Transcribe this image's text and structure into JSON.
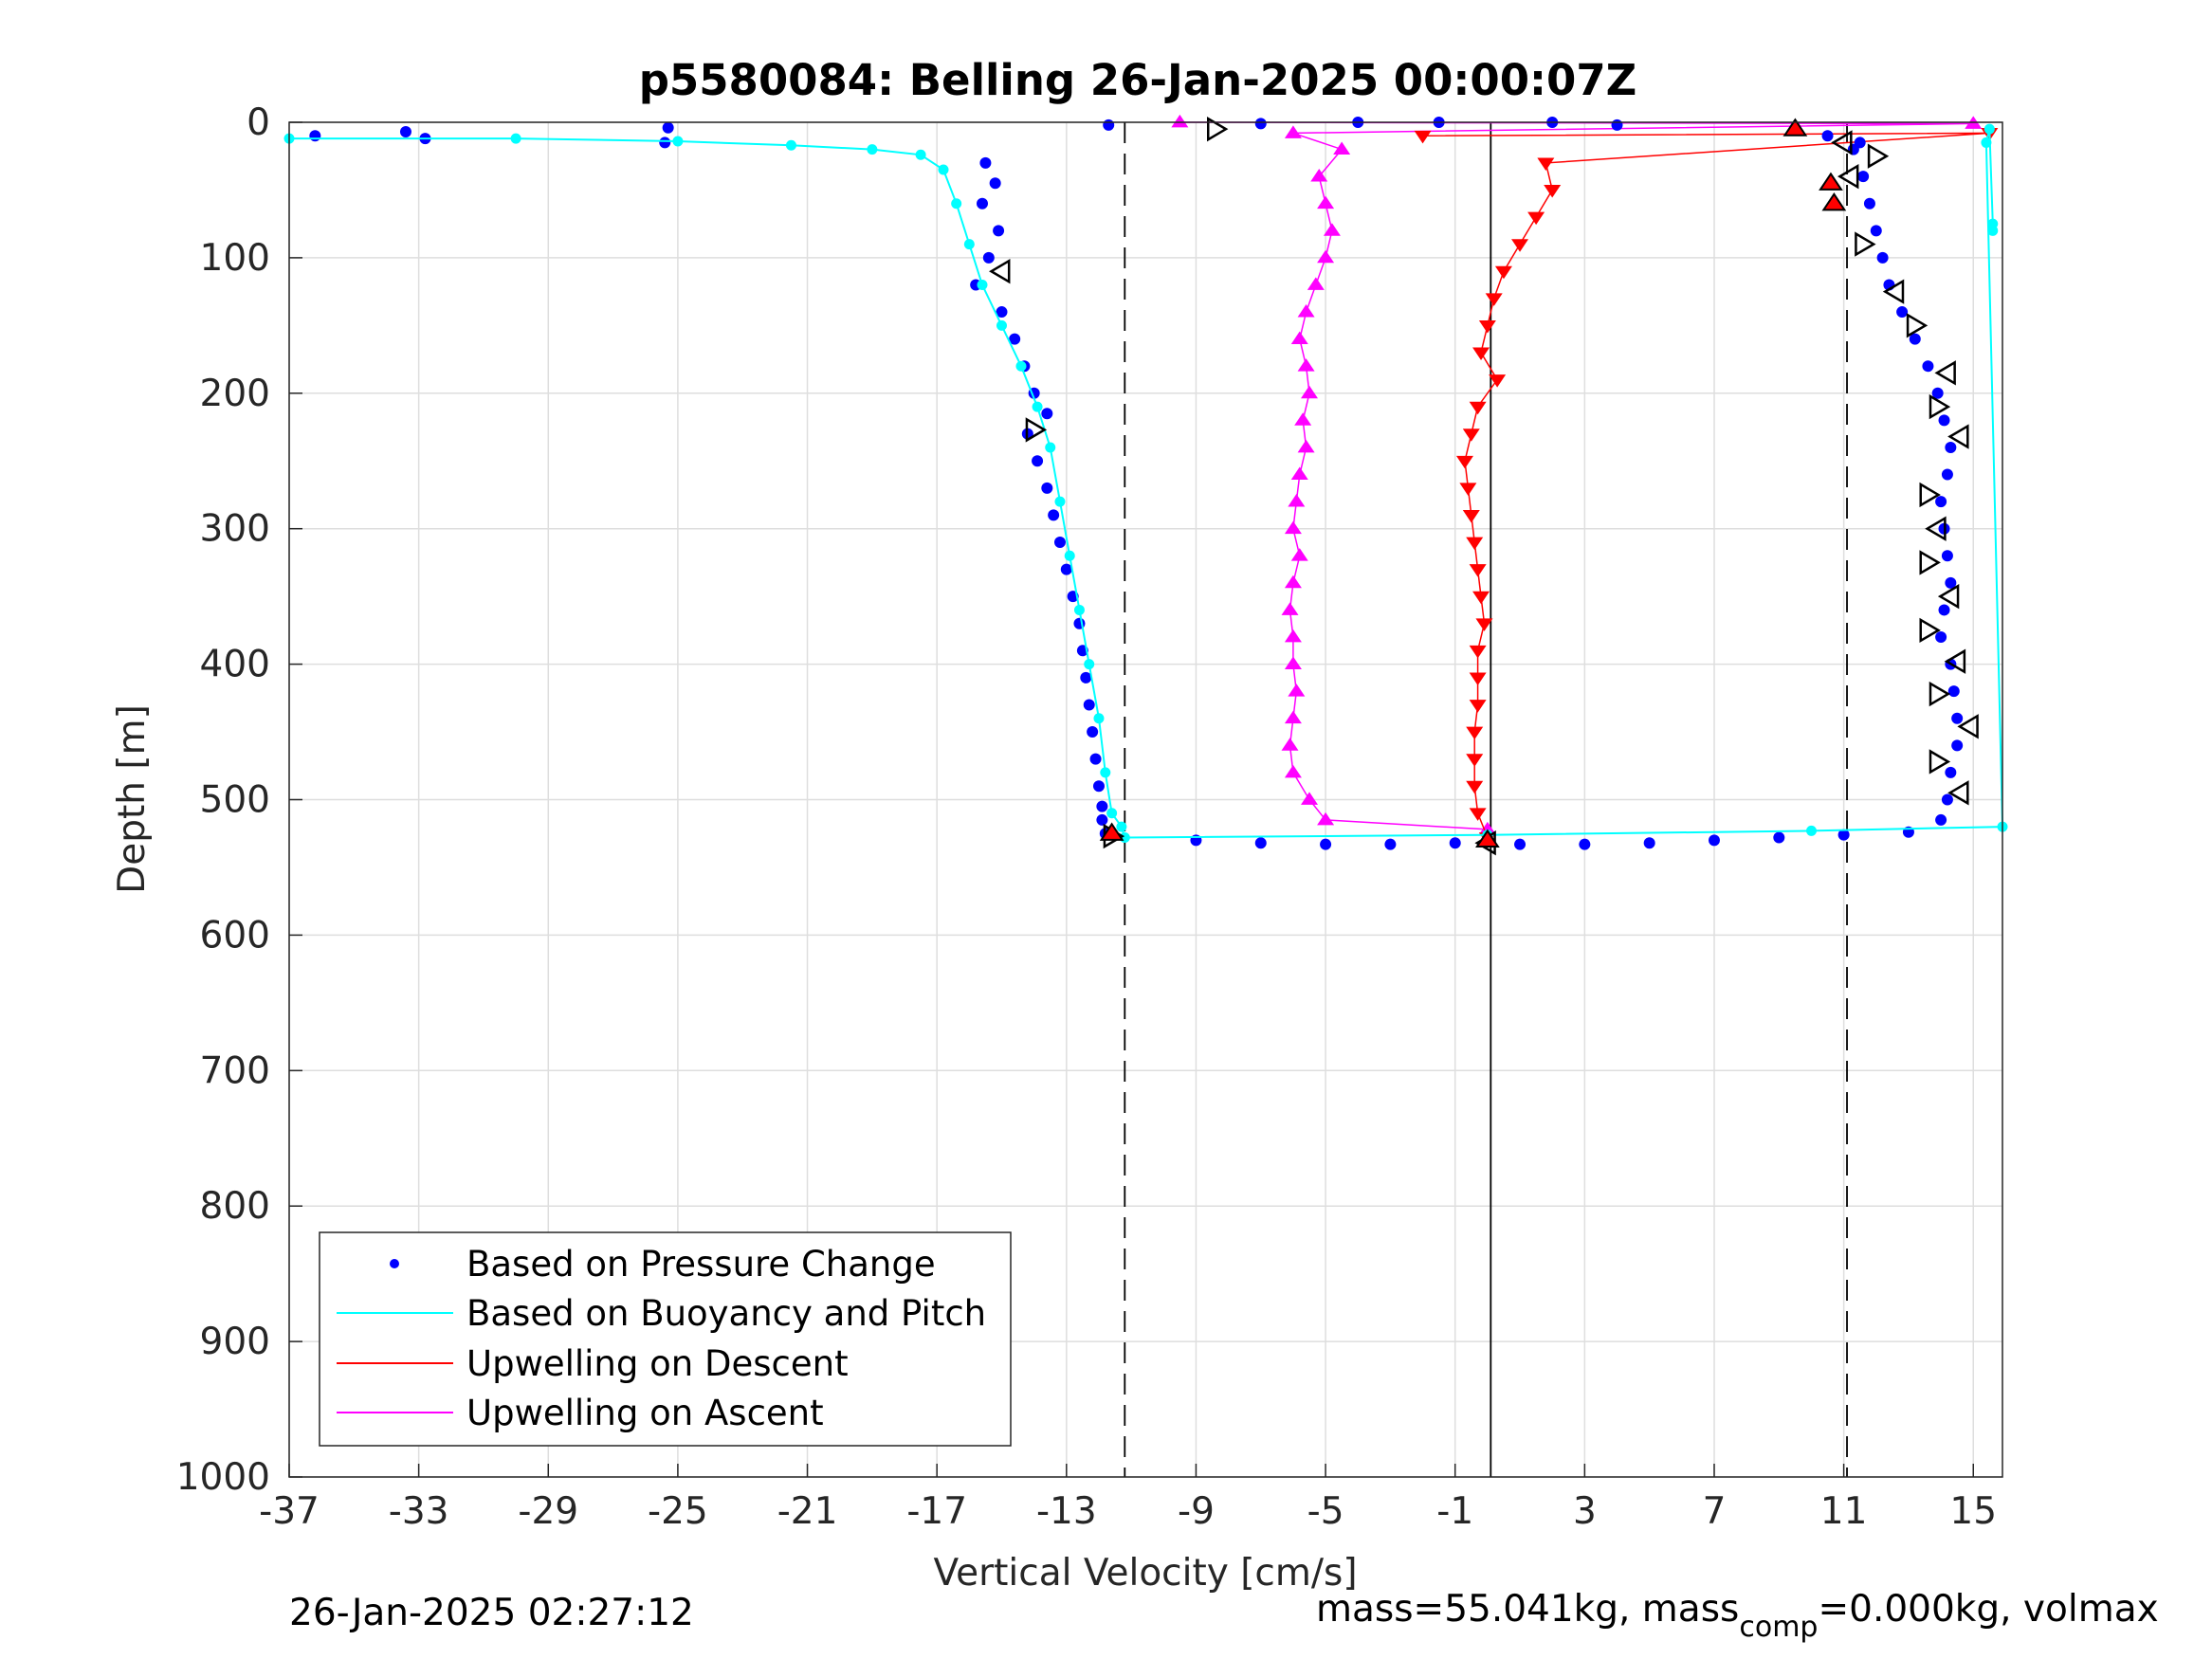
{
  "chart_data": {
    "type": "scatter",
    "title": "p5580084: Belling 26-Jan-2025 00:00:07Z",
    "xlabel": "Vertical Velocity [cm/s]",
    "ylabel": "Depth [m]",
    "xlim": [
      -37,
      15.9
    ],
    "ylim": [
      0,
      1000
    ],
    "y_reversed": true,
    "grid": true,
    "legend_position": "bottom-left",
    "xticks": [
      -37,
      -33,
      -29,
      -25,
      -21,
      -17,
      -13,
      -9,
      -5,
      -1,
      3,
      7,
      11,
      15
    ],
    "yticks": [
      0,
      100,
      200,
      300,
      400,
      500,
      600,
      700,
      800,
      900,
      1000
    ],
    "reference_lines": [
      {
        "x": -11.2,
        "style": "dashed"
      },
      {
        "x": 0.1,
        "style": "solid"
      },
      {
        "x": 11.1,
        "style": "dashed"
      }
    ],
    "series": [
      {
        "name": "Based on Pressure Change",
        "color": "#0000ff",
        "marker": "dot",
        "descent": [
          [
            -15.5,
            30
          ],
          [
            -15.2,
            45
          ],
          [
            -15.6,
            60
          ],
          [
            -15.1,
            80
          ],
          [
            -15.4,
            100
          ],
          [
            -15.8,
            120
          ],
          [
            -15.0,
            140
          ],
          [
            -14.6,
            160
          ],
          [
            -14.3,
            180
          ],
          [
            -14.0,
            200
          ],
          [
            -13.6,
            215
          ],
          [
            -14.2,
            230
          ],
          [
            -13.9,
            250
          ],
          [
            -13.6,
            270
          ],
          [
            -13.4,
            290
          ],
          [
            -13.2,
            310
          ],
          [
            -13.0,
            330
          ],
          [
            -12.8,
            350
          ],
          [
            -12.6,
            370
          ],
          [
            -12.5,
            390
          ],
          [
            -12.4,
            410
          ],
          [
            -12.3,
            430
          ],
          [
            -12.2,
            450
          ],
          [
            -12.1,
            470
          ],
          [
            -12.0,
            490
          ],
          [
            -11.9,
            505
          ],
          [
            -11.9,
            515
          ],
          [
            -11.8,
            525
          ]
        ],
        "ascent": [
          [
            11.3,
            20
          ],
          [
            11.6,
            40
          ],
          [
            11.8,
            60
          ],
          [
            12.0,
            80
          ],
          [
            12.2,
            100
          ],
          [
            12.4,
            120
          ],
          [
            12.8,
            140
          ],
          [
            13.2,
            160
          ],
          [
            13.6,
            180
          ],
          [
            13.9,
            200
          ],
          [
            14.1,
            220
          ],
          [
            14.3,
            240
          ],
          [
            14.2,
            260
          ],
          [
            14.0,
            280
          ],
          [
            14.1,
            300
          ],
          [
            14.2,
            320
          ],
          [
            14.3,
            340
          ],
          [
            14.1,
            360
          ],
          [
            14.0,
            380
          ],
          [
            14.3,
            400
          ],
          [
            14.4,
            420
          ],
          [
            14.5,
            440
          ],
          [
            14.5,
            460
          ],
          [
            14.3,
            480
          ],
          [
            14.2,
            500
          ],
          [
            14.0,
            515
          ]
        ],
        "bottom_turn": [
          [
            -9.0,
            530
          ],
          [
            -7.0,
            532
          ],
          [
            -5.0,
            533
          ],
          [
            -3.0,
            533
          ],
          [
            -1.0,
            532
          ],
          [
            1.0,
            533
          ],
          [
            3.0,
            533
          ],
          [
            5.0,
            532
          ],
          [
            7.0,
            530
          ],
          [
            9.0,
            528
          ],
          [
            11.0,
            526
          ],
          [
            13.0,
            524
          ]
        ],
        "surface": [
          [
            -36.2,
            10
          ],
          [
            -33.4,
            7
          ],
          [
            -32.8,
            12
          ],
          [
            -25.3,
            4
          ],
          [
            -25.4,
            15
          ],
          [
            -11.7,
            2
          ],
          [
            -7.0,
            1
          ],
          [
            -4.0,
            0
          ],
          [
            -1.5,
            0
          ],
          [
            2.0,
            0
          ],
          [
            4.0,
            2
          ],
          [
            9.5,
            5
          ],
          [
            10.5,
            10
          ],
          [
            11.5,
            15
          ]
        ]
      },
      {
        "name": "Based on Buoyancy and Pitch",
        "color": "#00ffff",
        "marker": "line",
        "points": [
          [
            -37.0,
            12
          ],
          [
            -30.0,
            12
          ],
          [
            -25.0,
            14
          ],
          [
            -21.5,
            17
          ],
          [
            -19.0,
            20
          ],
          [
            -17.5,
            24
          ],
          [
            -16.8,
            35
          ],
          [
            -16.4,
            60
          ],
          [
            -16.0,
            90
          ],
          [
            -15.6,
            120
          ],
          [
            -15.0,
            150
          ],
          [
            -14.4,
            180
          ],
          [
            -13.9,
            210
          ],
          [
            -13.5,
            240
          ],
          [
            -13.2,
            280
          ],
          [
            -12.9,
            320
          ],
          [
            -12.6,
            360
          ],
          [
            -12.3,
            400
          ],
          [
            -12.0,
            440
          ],
          [
            -11.8,
            480
          ],
          [
            -11.6,
            510
          ],
          [
            -11.3,
            520
          ],
          [
            -11.2,
            528
          ],
          [
            0.0,
            526
          ],
          [
            10.0,
            523
          ],
          [
            15.9,
            520
          ],
          [
            15.4,
            15
          ],
          [
            15.5,
            5
          ],
          [
            15.6,
            75
          ],
          [
            15.6,
            80
          ]
        ]
      },
      {
        "name": "Upwelling on Descent",
        "color": "#ff0000",
        "marker": "triangle-down",
        "points": [
          [
            -2.0,
            10
          ],
          [
            15.5,
            8
          ],
          [
            1.8,
            30
          ],
          [
            2.0,
            50
          ],
          [
            1.5,
            70
          ],
          [
            1.0,
            90
          ],
          [
            0.5,
            110
          ],
          [
            0.2,
            130
          ],
          [
            0.0,
            150
          ],
          [
            -0.2,
            170
          ],
          [
            0.3,
            190
          ],
          [
            -0.3,
            210
          ],
          [
            -0.5,
            230
          ],
          [
            -0.7,
            250
          ],
          [
            -0.6,
            270
          ],
          [
            -0.5,
            290
          ],
          [
            -0.4,
            310
          ],
          [
            -0.3,
            330
          ],
          [
            -0.2,
            350
          ],
          [
            -0.1,
            370
          ],
          [
            -0.3,
            390
          ],
          [
            -0.3,
            410
          ],
          [
            -0.3,
            430
          ],
          [
            -0.4,
            450
          ],
          [
            -0.4,
            470
          ],
          [
            -0.4,
            490
          ],
          [
            -0.3,
            510
          ],
          [
            0.0,
            528
          ]
        ]
      },
      {
        "name": "Upwelling on Ascent",
        "color": "#ff00ff",
        "marker": "triangle-up",
        "points": [
          [
            -9.5,
            0
          ],
          [
            15.0,
            1
          ],
          [
            -6.0,
            8
          ],
          [
            -4.5,
            20
          ],
          [
            -5.2,
            40
          ],
          [
            -5.0,
            60
          ],
          [
            -4.8,
            80
          ],
          [
            -5.0,
            100
          ],
          [
            -5.3,
            120
          ],
          [
            -5.6,
            140
          ],
          [
            -5.8,
            160
          ],
          [
            -5.6,
            180
          ],
          [
            -5.5,
            200
          ],
          [
            -5.7,
            220
          ],
          [
            -5.6,
            240
          ],
          [
            -5.8,
            260
          ],
          [
            -5.9,
            280
          ],
          [
            -6.0,
            300
          ],
          [
            -5.8,
            320
          ],
          [
            -6.0,
            340
          ],
          [
            -6.1,
            360
          ],
          [
            -6.0,
            380
          ],
          [
            -6.0,
            400
          ],
          [
            -5.9,
            420
          ],
          [
            -6.0,
            440
          ],
          [
            -6.1,
            460
          ],
          [
            -6.0,
            480
          ],
          [
            -5.5,
            500
          ],
          [
            -5.0,
            515
          ],
          [
            0.0,
            522
          ]
        ]
      }
    ],
    "markers": {
      "open_triangles": [
        [
          -8.4,
          5
        ],
        [
          -15.0,
          110
        ],
        [
          -14.0,
          227
        ],
        [
          11.0,
          15
        ],
        [
          12.0,
          25
        ],
        [
          11.2,
          40
        ],
        [
          11.6,
          90
        ],
        [
          12.6,
          125
        ],
        [
          13.2,
          150
        ],
        [
          14.2,
          185
        ],
        [
          13.9,
          210
        ],
        [
          14.6,
          232
        ],
        [
          13.6,
          275
        ],
        [
          13.9,
          300
        ],
        [
          13.6,
          325
        ],
        [
          14.3,
          350
        ],
        [
          13.6,
          375
        ],
        [
          14.5,
          398
        ],
        [
          13.9,
          422
        ],
        [
          14.9,
          446
        ],
        [
          13.9,
          472
        ],
        [
          14.6,
          495
        ],
        [
          -11.6,
          527
        ],
        [
          0.0,
          532
        ]
      ],
      "red_triangles": [
        [
          9.5,
          5
        ],
        [
          10.6,
          45
        ],
        [
          10.7,
          60
        ],
        [
          -11.6,
          525
        ],
        [
          0.0,
          530
        ]
      ]
    }
  },
  "footer_left": "26-Jan-2025 02:27:12",
  "footer_right_prefix": "mass=55.041kg, mass",
  "footer_right_sub": "comp",
  "footer_right_suffix": "=0.000kg, volmax"
}
